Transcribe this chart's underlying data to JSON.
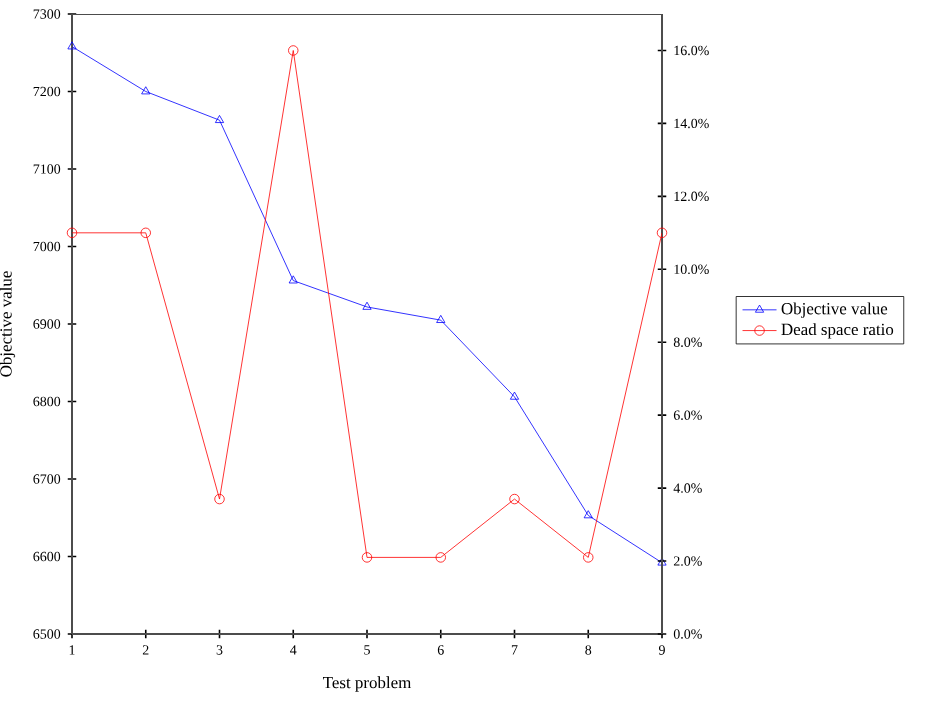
{
  "chart_data": {
    "type": "line",
    "xlabel": "Test problem",
    "ylabel": "Objective value",
    "x": [
      1,
      2,
      3,
      4,
      5,
      6,
      7,
      8,
      9
    ],
    "series": [
      {
        "name": "Objective value",
        "color": "#0000ff",
        "marker": "triangle",
        "values": [
          7258,
          7200,
          7163,
          6956,
          6922,
          6905,
          6806,
          6653,
          6592
        ]
      },
      {
        "name": "Dead space ratio",
        "color": "#ff0000",
        "marker": "circle",
        "axis": "y2",
        "values": [
          11.0,
          11.0,
          3.7,
          16.0,
          2.1,
          2.1,
          3.7,
          2.1,
          11.0
        ]
      }
    ],
    "xlim": [
      1,
      9
    ],
    "xticks": [
      1,
      2,
      3,
      4,
      5,
      6,
      7,
      8,
      9
    ],
    "ylim": [
      6500,
      7300
    ],
    "yticks": [
      6500,
      6600,
      6700,
      6800,
      6900,
      7000,
      7100,
      7200,
      7300
    ],
    "y2lim": [
      0,
      17
    ],
    "y2ticks": [
      {
        "value": 0,
        "label": "0.0%"
      },
      {
        "value": 2,
        "label": "2.0%"
      },
      {
        "value": 4,
        "label": "4.0%"
      },
      {
        "value": 6,
        "label": "6.0%"
      },
      {
        "value": 8,
        "label": "8.0%"
      },
      {
        "value": 10,
        "label": "10.0%"
      },
      {
        "value": 12,
        "label": "12.0%"
      },
      {
        "value": 14,
        "label": "14.0%"
      },
      {
        "value": 16,
        "label": "16.0%"
      }
    ],
    "grid": false,
    "legend": "right",
    "line_style": "solid"
  }
}
